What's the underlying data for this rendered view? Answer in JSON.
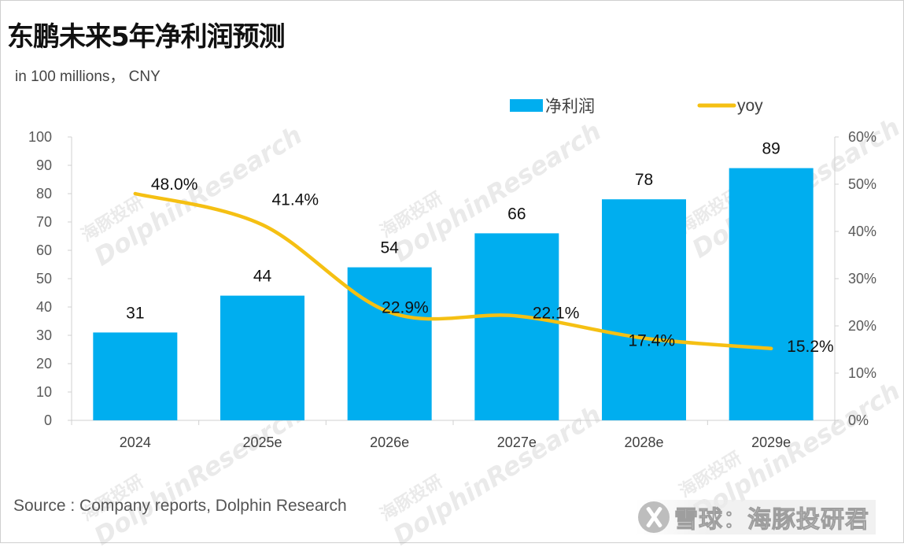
{
  "title": "东鹏未来5年净利润预测",
  "unit_note": "in 100 millions，  CNY",
  "source": "Source : Company reports, Dolphin Research",
  "watermark": {
    "cn": "海豚投研",
    "en": "DolphinResearch"
  },
  "brand": {
    "name": "雪球：海豚投研君",
    "icon": "snowball-logo-icon"
  },
  "chart_data": {
    "type": "bar+line",
    "categories": [
      "2024",
      "2025e",
      "2026e",
      "2027e",
      "2028e",
      "2029e"
    ],
    "series": [
      {
        "name": "净利润",
        "type": "bar",
        "axis": "left",
        "values": [
          31,
          44,
          54,
          66,
          78,
          89
        ],
        "labels": [
          "31",
          "44",
          "54",
          "66",
          "78",
          "89"
        ],
        "color": "#00AEEF"
      },
      {
        "name": "yoy",
        "type": "line",
        "axis": "right",
        "values": [
          48.0,
          41.4,
          22.9,
          22.1,
          17.4,
          15.2
        ],
        "labels": [
          "48.0%",
          "41.4%",
          "22.9%",
          "22.1%",
          "17.4%",
          "15.2%"
        ],
        "color": "#F5C013"
      }
    ],
    "y_left": {
      "range": [
        0,
        100
      ],
      "ticks": [
        "0",
        "10",
        "20",
        "30",
        "40",
        "50",
        "60",
        "70",
        "80",
        "90",
        "100"
      ]
    },
    "y_right": {
      "range": [
        0,
        60
      ],
      "ticks": [
        "0%",
        "10%",
        "20%",
        "30%",
        "40%",
        "50%",
        "60%"
      ]
    },
    "legend": {
      "position": "top-right",
      "items": [
        "净利润",
        "yoy"
      ]
    },
    "grid": false
  }
}
